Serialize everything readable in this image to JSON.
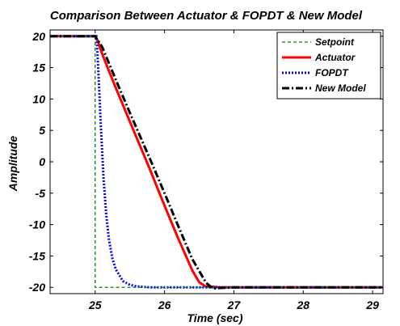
{
  "chart_data": {
    "type": "line",
    "title": "Comparison Between Actuator & FOPDT & New Model",
    "xlabel": "Time (sec)",
    "ylabel": "Amplitude",
    "xlim": [
      24.35,
      29.15
    ],
    "ylim": [
      -21,
      21
    ],
    "xticks": [
      25,
      26,
      27,
      28,
      29
    ],
    "xtick_labels": [
      "25",
      "26",
      "27",
      "28",
      "29"
    ],
    "yticks": [
      20,
      15,
      10,
      5,
      0,
      -5,
      -10,
      -15,
      -20
    ],
    "ytick_labels": [
      "20",
      "15",
      "10",
      "5",
      "0",
      "-5",
      "-10",
      "-15",
      "-20"
    ],
    "grid": false,
    "legend_position": "top-right",
    "series": [
      {
        "name": "Setpoint",
        "color": "#008000",
        "style": "dashed",
        "x": [
          24.35,
          24.999,
          25.0,
          29.15
        ],
        "y": [
          20,
          20,
          -20,
          -20
        ]
      },
      {
        "name": "Actuator",
        "color": "#ff0000",
        "style": "solid",
        "x": [
          24.35,
          25.0,
          25.04,
          25.08,
          25.15,
          25.3,
          25.5,
          25.8,
          26.0,
          26.2,
          26.4,
          26.5,
          26.6,
          26.7,
          26.8,
          27.0,
          27.5,
          28.0,
          28.5,
          29.15
        ],
        "y": [
          20,
          20,
          19.2,
          17.8,
          15.8,
          11.7,
          6.4,
          -1.5,
          -7.0,
          -12.3,
          -17.3,
          -19.2,
          -19.9,
          -19.9,
          -20,
          -20,
          -20,
          -20,
          -20,
          -20
        ]
      },
      {
        "name": "FOPDT",
        "color": "#0000ff",
        "style": "dotted",
        "x": [
          24.35,
          25.02,
          25.05,
          25.08,
          25.12,
          25.16,
          25.2,
          25.25,
          25.3,
          25.4,
          25.5,
          25.6,
          25.8,
          26.0,
          26.5,
          27.0,
          28.0,
          29.15
        ],
        "y": [
          20,
          20,
          13.5,
          6.0,
          -2.5,
          -8.5,
          -12.5,
          -15.5,
          -17.2,
          -19.0,
          -19.6,
          -19.85,
          -20,
          -20,
          -20,
          -20,
          -20,
          -20
        ],
        "shift": [
          0
        ]
      },
      {
        "name": "New Model",
        "color": "#000000",
        "style": "dashdot",
        "x": [
          24.35,
          25.0,
          25.1,
          25.3,
          25.5,
          25.8,
          26.0,
          26.2,
          26.4,
          26.6,
          26.7,
          26.8,
          27.0,
          28.0,
          29.15
        ],
        "y": [
          20,
          20,
          18.3,
          13.0,
          7.8,
          0.2,
          -5.0,
          -10.3,
          -15.5,
          -19.3,
          -20.2,
          -20.1,
          -20,
          -20,
          -20
        ]
      }
    ]
  }
}
